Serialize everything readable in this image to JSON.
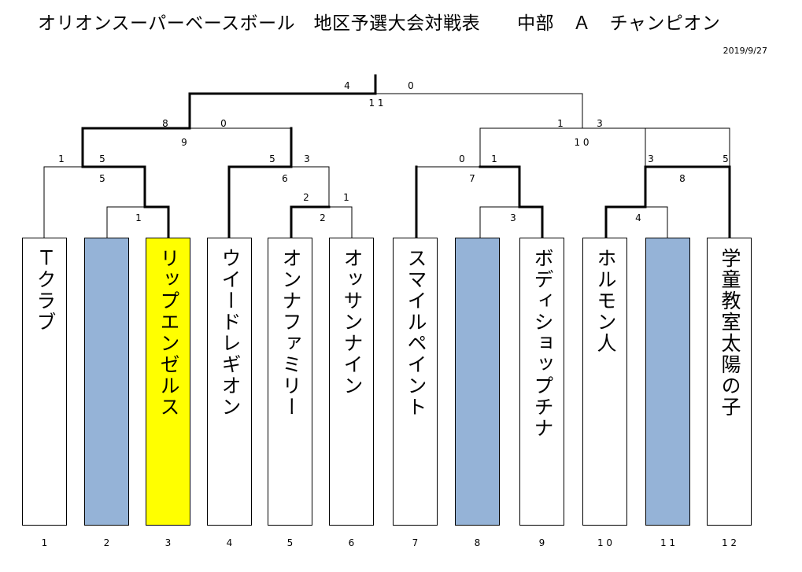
{
  "title": "オリオンスーパーベースボール　地区予選大会対戦表　　中部　Ａ　チャンピオン",
  "date": "2019/9/27",
  "teams": [
    {
      "num": "1",
      "name": "Ｔクラブ",
      "state": "normal"
    },
    {
      "num": "2",
      "name": "",
      "state": "bye"
    },
    {
      "num": "3",
      "name": "リップエンゼルス",
      "state": "champion"
    },
    {
      "num": "4",
      "name": "ウイードレギオン",
      "state": "normal"
    },
    {
      "num": "5",
      "name": "オンナファミリー",
      "state": "normal"
    },
    {
      "num": "6",
      "name": "オッサンナイン",
      "state": "normal"
    },
    {
      "num": "7",
      "name": "スマイルペイント",
      "state": "normal"
    },
    {
      "num": "8",
      "name": "",
      "state": "bye"
    },
    {
      "num": "9",
      "name": "ボディショップチナ",
      "state": "normal"
    },
    {
      "num": "1 0",
      "name": "ホルモン人",
      "state": "normal"
    },
    {
      "num": "1 1",
      "name": "",
      "state": "bye"
    },
    {
      "num": "1 2",
      "name": "学童教室太陽の子",
      "state": "normal"
    }
  ],
  "scores": {
    "s_r1_left": "1",
    "s_r1_right": "5",
    "s_r2b_left": "5",
    "s_m1": "1",
    "s_q2_left": "8",
    "s_q2_right": "0",
    "s_q2_game": "9",
    "s_b_left": "5",
    "s_b_right": "3",
    "s_b_game": "6",
    "s_c_left": "2",
    "s_c_right": "1",
    "s_c_game": "2",
    "s_final_left": "4",
    "s_final_right": "0",
    "s_final_game": "1 1",
    "s_rq_left": "1",
    "s_rq_right": "3",
    "s_rq_game": "1 0",
    "s_d_left": "0",
    "s_d_right": "1",
    "s_d_game": "7",
    "s_e_game": "3",
    "s_f_left": "3",
    "s_f_right": "5",
    "s_f_game": "8",
    "s_g_game": "4"
  }
}
